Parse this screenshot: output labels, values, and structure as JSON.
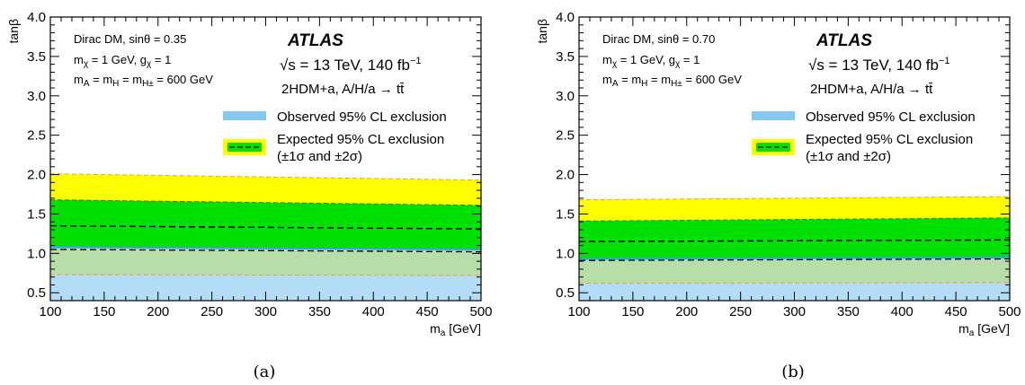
{
  "chart_data": [
    {
      "type": "area",
      "caption": "(a)",
      "xlabel": "m_a [GeV]",
      "ylabel": "tanβ",
      "xlim": [
        100,
        500
      ],
      "ylim": [
        0.4,
        4.0
      ],
      "xticks": [
        "100",
        "150",
        "200",
        "250",
        "300",
        "350",
        "400",
        "450",
        "500"
      ],
      "yticks": [
        "0.5",
        "1.0",
        "1.5",
        "2.0",
        "2.5",
        "3.0",
        "3.5",
        "4.0"
      ],
      "params": {
        "line1": "Dirac DM, sinθ = 0.35",
        "line2_a": "m",
        "line2_a_sub": "χ",
        "line2_b": " = 1 GeV, g",
        "line2_b_sub": "χ",
        "line2_c": " = 1",
        "line3_a": "m",
        "line3_a_sub": "A",
        "line3_b": " = m",
        "line3_b_sub": "H",
        "line3_c": " = m",
        "line3_c_sub": "H±",
        "line3_d": " = 600 GeV"
      },
      "atlas": "ATLAS",
      "energy": "√s = 13 TeV, 140 fb",
      "energy_sup": "−1",
      "model": "2HDM+a, A/H/a → tt̄",
      "legend": {
        "observed": "Observed 95% CL exclusion",
        "expected_1": "Expected 95% CL exclusion",
        "expected_2": "(±1σ and ±2σ)"
      },
      "series": [
        {
          "name": "Observed 95% CL exclusion",
          "role": "observed",
          "x": [
            100,
            500
          ],
          "y": [
            1.08,
            1.05
          ]
        },
        {
          "name": "Expected 95% CL exclusion",
          "role": "expected",
          "x": [
            100,
            500
          ],
          "y": [
            1.35,
            1.31
          ]
        },
        {
          "role": "plus1sigma",
          "x": [
            100,
            500
          ],
          "y": [
            1.68,
            1.61
          ]
        },
        {
          "role": "minus1sigma",
          "x": [
            100,
            500
          ],
          "y": [
            1.05,
            1.02
          ]
        },
        {
          "role": "plus2sigma",
          "x": [
            100,
            500
          ],
          "y": [
            2.01,
            1.93
          ]
        },
        {
          "role": "minus2sigma",
          "x": [
            100,
            500
          ],
          "y": [
            0.73,
            0.72
          ]
        }
      ]
    },
    {
      "type": "area",
      "caption": "(b)",
      "xlabel": "m_a [GeV]",
      "ylabel": "tanβ",
      "xlim": [
        100,
        500
      ],
      "ylim": [
        0.4,
        4.0
      ],
      "xticks": [
        "100",
        "150",
        "200",
        "250",
        "300",
        "350",
        "400",
        "450",
        "500"
      ],
      "yticks": [
        "0.5",
        "1.0",
        "1.5",
        "2.0",
        "2.5",
        "3.0",
        "3.5",
        "4.0"
      ],
      "params": {
        "line1": "Dirac DM, sinθ = 0.70",
        "line2_a": "m",
        "line2_a_sub": "χ",
        "line2_b": " = 1 GeV, g",
        "line2_b_sub": "χ",
        "line2_c": " = 1",
        "line3_a": "m",
        "line3_a_sub": "A",
        "line3_b": " = m",
        "line3_b_sub": "H",
        "line3_c": " = m",
        "line3_c_sub": "H±",
        "line3_d": " = 600 GeV"
      },
      "atlas": "ATLAS",
      "energy": "√s = 13 TeV, 140 fb",
      "energy_sup": "−1",
      "model": "2HDM+a, A/H/a → tt̄",
      "legend": {
        "observed": "Observed 95% CL exclusion",
        "expected_1": "Expected 95% CL exclusion",
        "expected_2": "(±1σ and ±2σ)"
      },
      "series": [
        {
          "name": "Observed 95% CL exclusion",
          "role": "observed",
          "x": [
            100,
            500
          ],
          "y": [
            0.93,
            0.95
          ]
        },
        {
          "name": "Expected 95% CL exclusion",
          "role": "expected",
          "x": [
            100,
            500
          ],
          "y": [
            1.15,
            1.17
          ]
        },
        {
          "role": "plus1sigma",
          "x": [
            100,
            500
          ],
          "y": [
            1.41,
            1.45
          ]
        },
        {
          "role": "minus1sigma",
          "x": [
            100,
            500
          ],
          "y": [
            0.91,
            0.93
          ]
        },
        {
          "role": "plus2sigma",
          "x": [
            100,
            500
          ],
          "y": [
            1.68,
            1.72
          ]
        },
        {
          "role": "minus2sigma",
          "x": [
            100,
            500
          ],
          "y": [
            0.62,
            0.63
          ]
        }
      ]
    }
  ],
  "colors": {
    "observed": "#b3dcf7",
    "observed_legend": "#86c7ef",
    "overlap": "#b7dea9",
    "one_sigma": "#00e000",
    "two_sigma": "#ffff00",
    "observed_line": "#34a5dc",
    "sigma_edge": "#f0a030"
  }
}
